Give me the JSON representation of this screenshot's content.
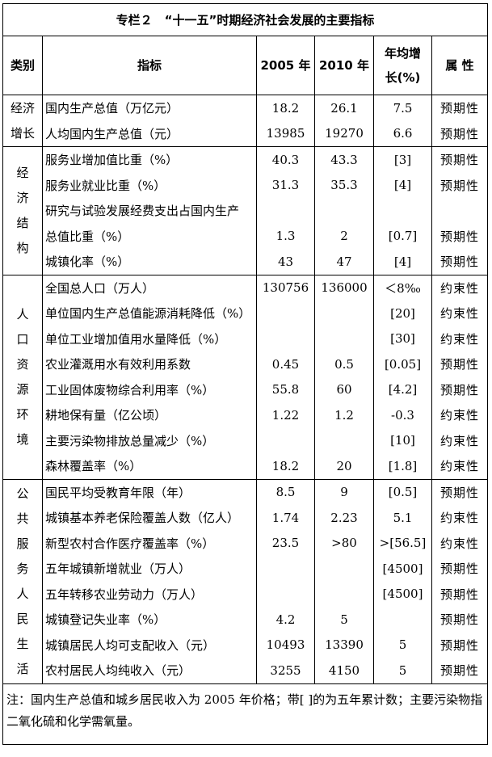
{
  "title": "专栏２　“十一五”时期经济社会发展的主要指标",
  "headers": {
    "category": "类别",
    "indicator": "指标",
    "y2005": "2005 年",
    "y2010": "2010 年",
    "growth_line1": "年均增",
    "growth_line2": "长(%)",
    "attribute": "属 性"
  },
  "sections": [
    {
      "category_lines": [
        "经济",
        "增长"
      ],
      "rows": [
        {
          "indicator": "国内生产总值（万亿元）",
          "y2005": "18.2",
          "y2010": "26.1",
          "growth": "7.5",
          "attribute": "预期性"
        },
        {
          "indicator": "人均国内生产总值（元）",
          "y2005": "13985",
          "y2010": "19270",
          "growth": "6.6",
          "attribute": "预期性"
        }
      ]
    },
    {
      "category_lines": [
        "经",
        "济",
        "结",
        "构"
      ],
      "rows": [
        {
          "indicator": "服务业增加值比重（%）",
          "y2005": "40.3",
          "y2010": "43.3",
          "growth": "[3]",
          "attribute": "预期性"
        },
        {
          "indicator": "服务业就业比重（%）",
          "y2005": "31.3",
          "y2010": "35.3",
          "growth": "[4]",
          "attribute": "预期性"
        },
        {
          "indicator": "研究与试验发展经费支出占国内生产",
          "y2005": "",
          "y2010": "",
          "growth": "",
          "attribute": ""
        },
        {
          "indicator": "总值比重（%）",
          "y2005": "1.3",
          "y2010": "2",
          "growth": "[0.7]",
          "attribute": "预期性"
        },
        {
          "indicator": "城镇化率（%）",
          "y2005": "43",
          "y2010": "47",
          "growth": "[4]",
          "attribute": "预期性"
        }
      ]
    },
    {
      "category_lines": [
        "人",
        "口",
        "资",
        "源",
        "环",
        "境"
      ],
      "rows": [
        {
          "indicator": "全国总人口（万人）",
          "y2005": "130756",
          "y2010": "136000",
          "growth": "＜8‰",
          "attribute": "约束性"
        },
        {
          "indicator": "单位国内生产总值能源消耗降低（%）",
          "y2005": "",
          "y2010": "",
          "growth": "[20]",
          "attribute": "约束性"
        },
        {
          "indicator": "单位工业增加值用水量降低（%）",
          "y2005": "",
          "y2010": "",
          "growth": "[30]",
          "attribute": "约束性"
        },
        {
          "indicator": "农业灌溉用水有效利用系数",
          "y2005": "0.45",
          "y2010": "0.5",
          "growth": "[0.05]",
          "attribute": "预期性"
        },
        {
          "indicator": "工业固体废物综合利用率（%）",
          "y2005": "55.8",
          "y2010": "60",
          "growth": "[4.2]",
          "attribute": "预期性"
        },
        {
          "indicator": "耕地保有量（亿公顷）",
          "y2005": "1.22",
          "y2010": "1.2",
          "growth": "-0.3",
          "attribute": "约束性"
        },
        {
          "indicator": "主要污染物排放总量减少（%）",
          "y2005": "",
          "y2010": "",
          "growth": "[10]",
          "attribute": "约束性"
        },
        {
          "indicator": "森林覆盖率（%）",
          "y2005": "18.2",
          "y2010": "20",
          "growth": "[1.8]",
          "attribute": "约束性"
        }
      ]
    },
    {
      "category_lines": [
        "公",
        "共",
        "服",
        "务",
        "人",
        "民",
        "生",
        "活"
      ],
      "rows": [
        {
          "indicator": "国民平均受教育年限（年）",
          "y2005": "8.5",
          "y2010": "9",
          "growth": "[0.5]",
          "attribute": "预期性"
        },
        {
          "indicator": "城镇基本养老保险覆盖人数（亿人）",
          "y2005": "1.74",
          "y2010": "2.23",
          "growth": "5.1",
          "attribute": "约束性"
        },
        {
          "indicator": "新型农村合作医疗覆盖率（%）",
          "y2005": "23.5",
          "y2010": ">80",
          "growth": ">[56.5]",
          "attribute": "约束性"
        },
        {
          "indicator": "五年城镇新增就业（万人）",
          "y2005": "",
          "y2010": "",
          "growth": "[4500]",
          "attribute": "预期性"
        },
        {
          "indicator": "五年转移农业劳动力（万人）",
          "y2005": "",
          "y2010": "",
          "growth": "[4500]",
          "attribute": "预期性"
        },
        {
          "indicator": "城镇登记失业率（%）",
          "y2005": "4.2",
          "y2010": "5",
          "growth": "",
          "attribute": "预期性"
        },
        {
          "indicator": "城镇居民人均可支配收入（元）",
          "y2005": "10493",
          "y2010": "13390",
          "growth": "5",
          "attribute": "预期性"
        },
        {
          "indicator": "农村居民人均纯收入（元）",
          "y2005": "3255",
          "y2010": "4150",
          "growth": "5",
          "attribute": "预期性"
        }
      ]
    }
  ],
  "note": "注：国内生产总值和城乡居民收入为 2005 年价格；带[ ]的为五年累计数；主要污染物指二氧化硫和化学需氧量。"
}
